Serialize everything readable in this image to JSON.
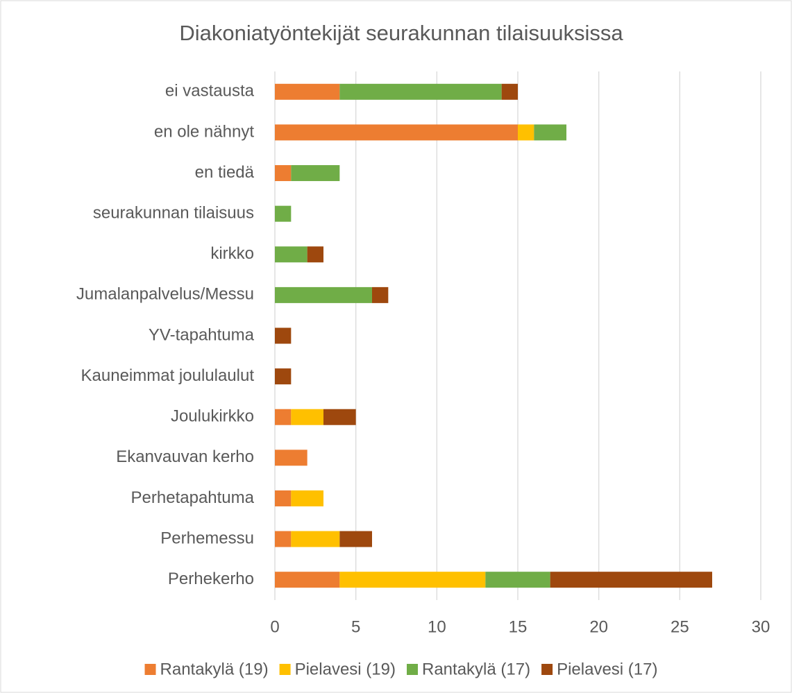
{
  "chart_data": {
    "type": "stacked-bar-horizontal",
    "title": "Diakoniatyöntekijät seurakunnan tilaisuuksissa",
    "categories": [
      "ei vastausta",
      "en ole nähnyt",
      "en tiedä",
      "seurakunnan tilaisuus",
      "kirkko",
      "Jumalanpalvelus/Messu",
      "YV-tapahtuma",
      "Kauneimmat joululaulut",
      "Joulukirkko",
      "Ekanvauvan kerho",
      "Perhetapahtuma",
      "Perhemessu",
      "Perhekerho"
    ],
    "series": [
      {
        "name": "Rantakylä (19)",
        "color": "#ed7d31",
        "values": [
          4,
          15,
          1,
          0,
          0,
          0,
          0,
          0,
          1,
          2,
          1,
          1,
          4
        ]
      },
      {
        "name": "Pielavesi (19)",
        "color": "#ffc000",
        "values": [
          0,
          1,
          0,
          0,
          0,
          0,
          0,
          0,
          2,
          0,
          2,
          3,
          9
        ]
      },
      {
        "name": "Rantakylä (17)",
        "color": "#70ad47",
        "values": [
          10,
          2,
          3,
          1,
          2,
          6,
          0,
          0,
          0,
          0,
          0,
          0,
          4
        ]
      },
      {
        "name": "Pielavesi (17)",
        "color": "#9e480e",
        "values": [
          1,
          0,
          0,
          0,
          1,
          1,
          1,
          1,
          2,
          0,
          0,
          2,
          10
        ]
      }
    ],
    "xlim": [
      0,
      30
    ],
    "xticks": [
      0,
      5,
      10,
      15,
      20,
      25,
      30
    ],
    "grid": true,
    "legend": "bottom"
  }
}
